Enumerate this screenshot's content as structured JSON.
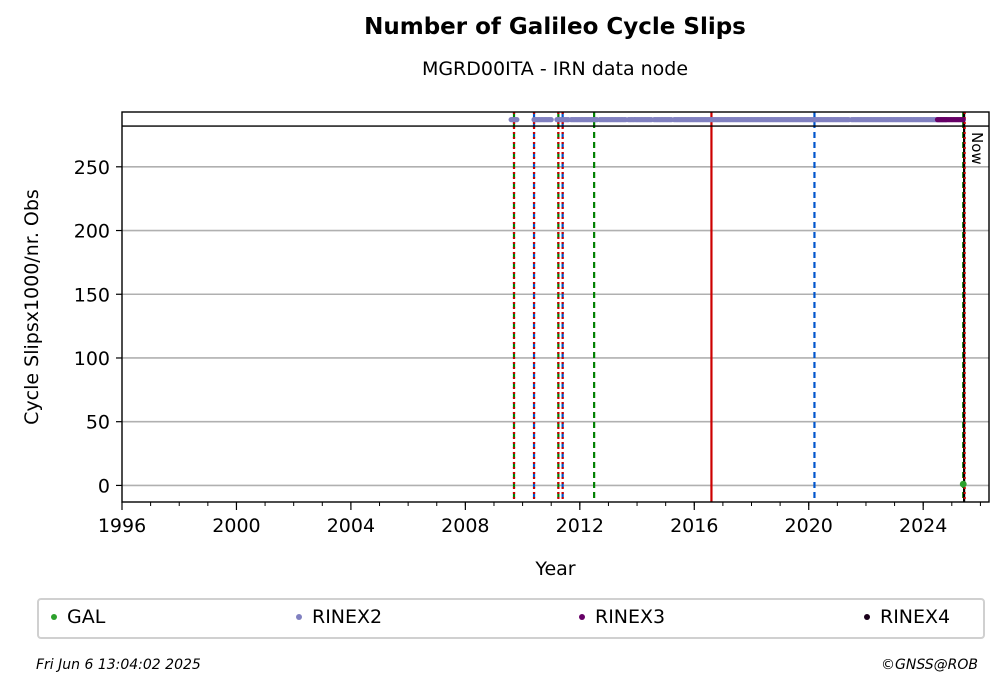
{
  "chart_data": {
    "type": "scatter",
    "title": "Number of Galileo Cycle Slips",
    "subtitle": "MGRD00ITA - IRN data node",
    "xlabel": "Year",
    "ylabel": "Cycle Slipsx1000/nr. Obs",
    "xlim": [
      1996,
      2026.3
    ],
    "ylim": [
      -13,
      293
    ],
    "x_ticks": [
      1996,
      2000,
      2004,
      2008,
      2012,
      2016,
      2020,
      2024
    ],
    "y_ticks": [
      0,
      50,
      100,
      150,
      200,
      250
    ],
    "grid": "horizontal",
    "now_label": "Now",
    "now_x": 2025.43,
    "series": [
      {
        "name": "GAL",
        "color": "#2ca02c",
        "points": [
          [
            2025.4,
            1
          ]
        ]
      }
    ],
    "bands": [
      {
        "name": "RINEX2",
        "color": "#8080c0",
        "y": 287,
        "ranges": [
          [
            2009.6,
            2009.8
          ],
          [
            2010.4,
            2010.5
          ],
          [
            2010.55,
            2011.0
          ],
          [
            2011.2,
            2011.6
          ],
          [
            2011.7,
            2012.6
          ],
          [
            2012.7,
            2013.6
          ],
          [
            2013.7,
            2014.5
          ],
          [
            2014.6,
            2015.0
          ],
          [
            2015.05,
            2015.2
          ],
          [
            2015.3,
            2021.4
          ],
          [
            2021.5,
            2024.8
          ]
        ]
      },
      {
        "name": "RINEX3",
        "color": "#660066",
        "y": 287,
        "ranges": [
          [
            2024.5,
            2025.43
          ]
        ]
      },
      {
        "name": "RINEX4",
        "color": "#1a001a",
        "y": 287,
        "ranges": []
      }
    ],
    "event_lines": [
      {
        "x": 2009.7,
        "color": "#008000",
        "style": "dashed"
      },
      {
        "x": 2009.7,
        "color": "#cc0000",
        "style": "dotted"
      },
      {
        "x": 2010.4,
        "color": "#0055cc",
        "style": "dashed"
      },
      {
        "x": 2010.4,
        "color": "#cc0000",
        "style": "dotted"
      },
      {
        "x": 2011.25,
        "color": "#008000",
        "style": "dashed"
      },
      {
        "x": 2011.25,
        "color": "#cc0000",
        "style": "dotted"
      },
      {
        "x": 2011.4,
        "color": "#0055cc",
        "style": "dashed"
      },
      {
        "x": 2011.4,
        "color": "#cc0000",
        "style": "dotted"
      },
      {
        "x": 2012.5,
        "color": "#008000",
        "style": "dashed"
      },
      {
        "x": 2016.6,
        "color": "#cc0000",
        "style": "solid"
      },
      {
        "x": 2020.2,
        "color": "#0055cc",
        "style": "dashed"
      },
      {
        "x": 2025.4,
        "color": "#008000",
        "style": "dashed"
      },
      {
        "x": 2025.43,
        "color": "#000000",
        "style": "solid"
      },
      {
        "x": 2025.45,
        "color": "#cc0000",
        "style": "dotted"
      }
    ],
    "legend": [
      {
        "name": "GAL",
        "color": "#2ca02c"
      },
      {
        "name": "RINEX2",
        "color": "#8080c0"
      },
      {
        "name": "RINEX3",
        "color": "#660066"
      },
      {
        "name": "RINEX4",
        "color": "#1a001a"
      }
    ],
    "legend_position": "bottom"
  },
  "footer": {
    "timestamp": "Fri Jun  6 13:04:02 2025",
    "credit": "©GNSS@ROB"
  }
}
